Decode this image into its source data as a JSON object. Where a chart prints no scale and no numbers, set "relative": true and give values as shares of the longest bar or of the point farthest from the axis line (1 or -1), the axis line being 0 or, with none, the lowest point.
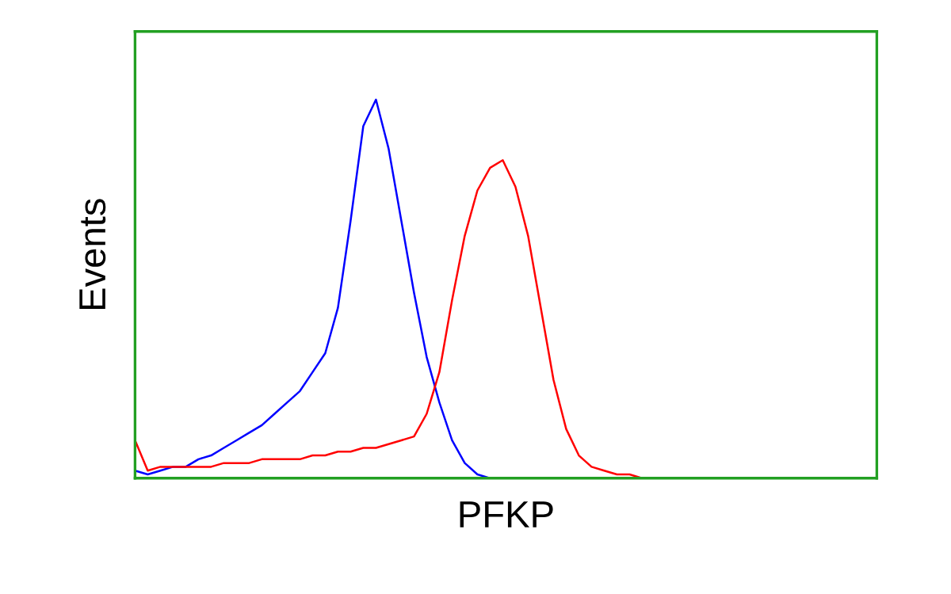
{
  "chart_data": {
    "type": "line",
    "relative": true,
    "xlabel": "PFKP",
    "ylabel": "Events",
    "categories": [
      null,
      null,
      null,
      null,
      null,
      null,
      null,
      null,
      null,
      null,
      null,
      null,
      null,
      null,
      null,
      null,
      null,
      null,
      null,
      null,
      null,
      null,
      null,
      null,
      null,
      null,
      null,
      null,
      null,
      null,
      null,
      null,
      null,
      null,
      null,
      null,
      null,
      null,
      null,
      null,
      null,
      null,
      null,
      null,
      null,
      null,
      null,
      null,
      null,
      null,
      null,
      null,
      null,
      null,
      null,
      null,
      null,
      null,
      null
    ],
    "series": [
      {
        "color": "#0000ff",
        "values": [
          0.02,
          0.01,
          0.02,
          0.03,
          0.03,
          0.05,
          0.06,
          0.08,
          0.1,
          0.12,
          0.14,
          0.17,
          0.2,
          0.23,
          0.28,
          0.33,
          0.45,
          0.68,
          0.93,
          1.0,
          0.87,
          0.68,
          0.49,
          0.32,
          0.2,
          0.1,
          0.04,
          0.01,
          0,
          null,
          null,
          null,
          null,
          null,
          null,
          null,
          null,
          null,
          null,
          null,
          null,
          null,
          null,
          null,
          null,
          null,
          null,
          null,
          null,
          null,
          null,
          null,
          null,
          null,
          null,
          null,
          null,
          null,
          null
        ]
      },
      {
        "color": "#ff0000",
        "values": [
          0.1,
          0.02,
          0.03,
          0.03,
          0.03,
          0.03,
          0.03,
          0.04,
          0.04,
          0.04,
          0.05,
          0.05,
          0.05,
          0.05,
          0.06,
          0.06,
          0.07,
          0.07,
          0.08,
          0.08,
          0.09,
          0.1,
          0.11,
          0.17,
          0.28,
          0.47,
          0.64,
          0.76,
          0.82,
          0.84,
          0.77,
          0.64,
          0.45,
          0.26,
          0.13,
          0.06,
          0.03,
          0.02,
          0.01,
          0.01,
          0,
          null,
          null,
          null,
          null,
          null,
          null,
          null,
          null,
          null,
          null,
          null,
          null,
          null,
          null,
          null,
          null,
          null,
          null
        ]
      }
    ]
  }
}
